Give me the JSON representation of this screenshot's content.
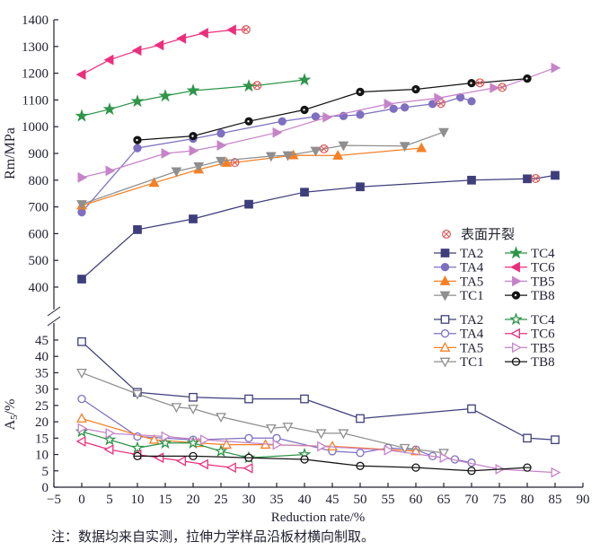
{
  "figure": {
    "note": "注：数据均来自实测，拉伸力学样品沿板材横向制取。",
    "background": "#ffffff",
    "axis_color": "#222233"
  },
  "x": {
    "label": "Reduction rate/%",
    "lim": [
      -5,
      90
    ],
    "tick_step": 5
  },
  "legend": {
    "crack": {
      "symbol": "crack-circle-x-icon",
      "label": "表面开裂",
      "color": "#dd5a5a"
    },
    "columns": [
      [
        "TA2",
        "TA4",
        "TA5",
        "TC1"
      ],
      [
        "TC4",
        "TC6",
        "TB5",
        "TB8"
      ]
    ]
  },
  "chart_data": [
    {
      "type": "line",
      "title": "Tensile strength vs reduction rate",
      "ylabel": "Rm/MPa",
      "ylim": [
        400,
        1400
      ],
      "ytick_step": 100,
      "marker_fill": "filled",
      "grid": false,
      "series": [
        {
          "name": "TA2",
          "color": "#3e3e7c",
          "marker": "square",
          "points": [
            [
              0,
              430
            ],
            [
              10,
              615
            ],
            [
              20,
              655
            ],
            [
              30,
              710
            ],
            [
              40,
              755
            ],
            [
              50,
              775
            ],
            [
              70,
              800
            ],
            [
              80,
              805
            ],
            [
              81.5,
              806,
              "c"
            ],
            [
              85,
              818
            ]
          ]
        },
        {
          "name": "TA4",
          "color": "#7f6fc1",
          "marker": "circle",
          "points": [
            [
              0,
              680
            ],
            [
              10,
              920
            ],
            [
              20,
              955
            ],
            [
              25,
              975
            ],
            [
              36,
              1020
            ],
            [
              42,
              1038
            ],
            [
              47,
              1040
            ],
            [
              50,
              1045
            ],
            [
              56,
              1067
            ],
            [
              58,
              1072
            ],
            [
              63,
              1085
            ],
            [
              64.5,
              1087,
              "c"
            ],
            [
              68,
              1110
            ],
            [
              70,
              1095
            ]
          ]
        },
        {
          "name": "TA5",
          "color": "#f58025",
          "marker": "triangle-up",
          "points": [
            [
              0,
              705
            ],
            [
              13,
              790
            ],
            [
              21,
              840
            ],
            [
              26,
              865
            ],
            [
              27.5,
              866,
              "c"
            ],
            [
              38,
              893
            ],
            [
              46,
              892
            ],
            [
              61,
              920
            ]
          ]
        },
        {
          "name": "TC1",
          "color": "#8f8f8f",
          "marker": "triangle-down",
          "points": [
            [
              0,
              710
            ],
            [
              17,
              833
            ],
            [
              21,
              852
            ],
            [
              25,
              872
            ],
            [
              34,
              890
            ],
            [
              37,
              893
            ],
            [
              42,
              910
            ],
            [
              43.5,
              917,
              "c"
            ],
            [
              47,
              930
            ],
            [
              58,
              928
            ],
            [
              65,
              980
            ]
          ]
        },
        {
          "name": "TC4",
          "color": "#2e9549",
          "marker": "star",
          "points": [
            [
              0,
              1040
            ],
            [
              5,
              1065
            ],
            [
              10,
              1095
            ],
            [
              15,
              1115
            ],
            [
              20,
              1135
            ],
            [
              30,
              1152
            ],
            [
              31.5,
              1154,
              "c"
            ],
            [
              40,
              1175
            ]
          ]
        },
        {
          "name": "TC6",
          "color": "#ec2f7d",
          "marker": "triangle-left",
          "points": [
            [
              0,
              1195
            ],
            [
              5,
              1250
            ],
            [
              10,
              1285
            ],
            [
              14,
              1305
            ],
            [
              18,
              1330
            ],
            [
              22,
              1350
            ],
            [
              27,
              1362
            ],
            [
              29.5,
              1363,
              "c"
            ]
          ]
        },
        {
          "name": "TB5",
          "color": "#c683c9",
          "marker": "triangle-right",
          "points": [
            [
              0,
              810
            ],
            [
              5,
              835
            ],
            [
              15,
              900
            ],
            [
              20,
              910
            ],
            [
              25,
              930
            ],
            [
              35,
              978
            ],
            [
              44,
              1035
            ],
            [
              55,
              1085
            ],
            [
              64,
              1107
            ],
            [
              74,
              1145
            ],
            [
              75.5,
              1147,
              "c"
            ],
            [
              85,
              1220
            ]
          ]
        },
        {
          "name": "TB8",
          "color": "#141414",
          "marker": "circle-dot",
          "points": [
            [
              10,
              950
            ],
            [
              20,
              965
            ],
            [
              30,
              1020
            ],
            [
              40,
              1063
            ],
            [
              50,
              1130
            ],
            [
              60,
              1140
            ],
            [
              70,
              1163
            ],
            [
              71.5,
              1164,
              "c"
            ],
            [
              80,
              1180
            ]
          ]
        }
      ]
    },
    {
      "type": "line",
      "title": "Elongation vs reduction rate",
      "ylabel": "A5/%",
      "ylabel_rich": {
        "base": "A",
        "sub": "5",
        "rest": "/%"
      },
      "ylim": [
        0,
        45
      ],
      "ytick_step": 5,
      "marker_fill": "open",
      "grid": false,
      "series": [
        {
          "name": "TA2",
          "color": "#3e3e7c",
          "marker": "square",
          "points": [
            [
              0,
              44.5
            ],
            [
              10,
              29
            ],
            [
              20,
              27.5
            ],
            [
              30,
              27
            ],
            [
              40,
              27
            ],
            [
              50,
              21
            ],
            [
              70,
              24
            ],
            [
              80,
              15
            ],
            [
              85,
              14.5
            ]
          ]
        },
        {
          "name": "TA4",
          "color": "#7f6fc1",
          "marker": "circle",
          "points": [
            [
              0,
              27
            ],
            [
              10,
              15.5
            ],
            [
              20,
              14.5
            ],
            [
              30,
              15
            ],
            [
              35,
              15
            ],
            [
              45,
              11
            ],
            [
              50,
              10.5
            ],
            [
              55,
              12
            ],
            [
              60,
              11.5
            ],
            [
              63,
              9.5
            ],
            [
              67,
              8.5
            ],
            [
              70,
              7.5
            ]
          ]
        },
        {
          "name": "TA5",
          "color": "#f58025",
          "marker": "triangle-up",
          "points": [
            [
              0,
              21
            ],
            [
              13,
              14.5
            ],
            [
              21,
              13.5
            ],
            [
              26,
              13
            ],
            [
              33,
              13
            ],
            [
              45,
              12.5
            ],
            [
              60,
              11
            ]
          ]
        },
        {
          "name": "TC1",
          "color": "#8f8f8f",
          "marker": "triangle-down",
          "points": [
            [
              0,
              35
            ],
            [
              10,
              28.5
            ],
            [
              17,
              24.5
            ],
            [
              20,
              24
            ],
            [
              25,
              21.5
            ],
            [
              34,
              18
            ],
            [
              37,
              18.5
            ],
            [
              43,
              16.5
            ],
            [
              47,
              16.5
            ],
            [
              58,
              12
            ],
            [
              65,
              10.5
            ]
          ]
        },
        {
          "name": "TC4",
          "color": "#2e9549",
          "marker": "star",
          "points": [
            [
              0,
              17
            ],
            [
              5,
              14.5
            ],
            [
              10,
              12
            ],
            [
              15,
              13.5
            ],
            [
              20,
              13.5
            ],
            [
              25,
              11
            ],
            [
              30,
              9
            ],
            [
              40,
              10
            ]
          ]
        },
        {
          "name": "TC6",
          "color": "#ec2f7d",
          "marker": "triangle-left",
          "points": [
            [
              0,
              14
            ],
            [
              5,
              11.5
            ],
            [
              10,
              10
            ],
            [
              14,
              9
            ],
            [
              18,
              8
            ],
            [
              22,
              7
            ],
            [
              27,
              6
            ],
            [
              30,
              5.8
            ]
          ]
        },
        {
          "name": "TB5",
          "color": "#c683c9",
          "marker": "triangle-right",
          "points": [
            [
              0,
              18
            ],
            [
              5,
              16.5
            ],
            [
              15,
              15.5
            ],
            [
              22,
              14.5
            ],
            [
              35,
              13
            ],
            [
              43,
              12.5
            ],
            [
              55,
              11.3
            ],
            [
              65,
              9
            ],
            [
              75,
              5.5
            ],
            [
              85,
              4.5
            ]
          ]
        },
        {
          "name": "TB8",
          "color": "#141414",
          "marker": "circle-dot",
          "points": [
            [
              10,
              9.5
            ],
            [
              20,
              9.5
            ],
            [
              30,
              9
            ],
            [
              40,
              8.5
            ],
            [
              50,
              6.5
            ],
            [
              60,
              6
            ],
            [
              70,
              5
            ],
            [
              80,
              6
            ]
          ]
        }
      ]
    }
  ]
}
